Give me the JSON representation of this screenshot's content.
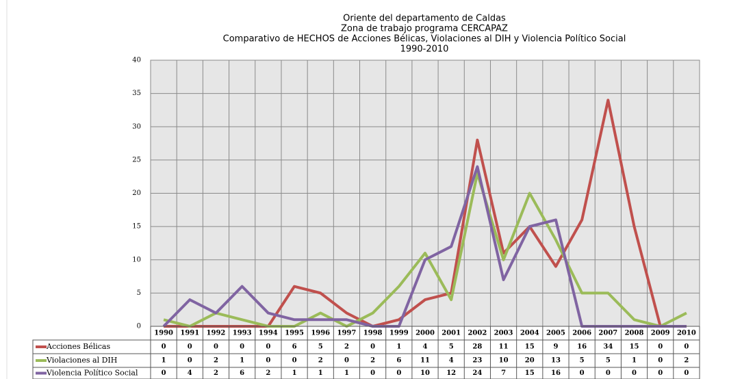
{
  "chart_data": {
    "type": "line",
    "title": [
      "Oriente del departamento de Caldas",
      "Zona  de trabajo programa CERCAPAZ",
      "Comparativo de HECHOS de Acciones Bélicas, Violaciones al DIH y Violencia Político Social",
      "1990-2010"
    ],
    "categories": [
      "1990",
      "1991",
      "1992",
      "1993",
      "1994",
      "1995",
      "1996",
      "1997",
      "1998",
      "1999",
      "2000",
      "2001",
      "2002",
      "2003",
      "2004",
      "2005",
      "2006",
      "2007",
      "2008",
      "2009",
      "2010"
    ],
    "series": [
      {
        "name": "Acciones Bélicas",
        "color": "#c0504d",
        "values": [
          0,
          0,
          0,
          0,
          0,
          6,
          5,
          2,
          0,
          1,
          4,
          5,
          28,
          11,
          15,
          9,
          16,
          34,
          15,
          0,
          0
        ]
      },
      {
        "name": "Violaciones al DIH",
        "color": "#9bbb59",
        "values": [
          1,
          0,
          2,
          1,
          0,
          0,
          2,
          0,
          2,
          6,
          11,
          4,
          23,
          10,
          20,
          13,
          5,
          5,
          1,
          0,
          2
        ]
      },
      {
        "name": "Violencia Político Social",
        "color": "#8064a2",
        "values": [
          0,
          4,
          2,
          6,
          2,
          1,
          1,
          1,
          0,
          0,
          10,
          12,
          24,
          7,
          15,
          16,
          0,
          0,
          0,
          0,
          0
        ]
      }
    ],
    "ylim": [
      0,
      40
    ],
    "yticks": [
      0,
      5,
      10,
      15,
      20,
      25,
      30,
      35,
      40
    ],
    "grid": true
  }
}
